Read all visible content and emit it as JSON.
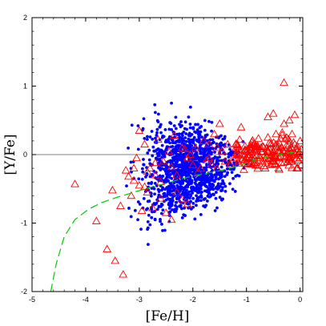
{
  "chart_data": {
    "type": "scatter",
    "title": "",
    "xlabel": "[Fe/H]",
    "ylabel": "[Y/Fe]",
    "xlim": [
      -5,
      0.05
    ],
    "ylim": [
      -2,
      2
    ],
    "x_ticks": [
      -5,
      -4,
      -3,
      -2,
      -1,
      0
    ],
    "x_tick_labels": [
      "-5",
      "-4",
      "-3",
      "-2",
      "-1",
      "0"
    ],
    "y_ticks": [
      -2,
      -1,
      0,
      1,
      2
    ],
    "y_tick_labels": [
      "-2",
      "-1",
      "0",
      "1",
      "2"
    ],
    "grid": false,
    "reference_line_y": 0,
    "colors": {
      "triangles": "#ff0000",
      "dots": "#0000ff",
      "model": "#00cc00",
      "axes": "#000000",
      "refline": "#555555"
    },
    "series": [
      {
        "marker": "open-triangle",
        "color": "#ff0000",
        "points": [
          [
            -4.2,
            -0.43
          ],
          [
            -3.8,
            -0.97
          ],
          [
            -3.6,
            -1.38
          ],
          [
            -3.45,
            -1.55
          ],
          [
            -3.3,
            -1.75
          ],
          [
            -3.35,
            -0.75
          ],
          [
            -3.5,
            -0.52
          ],
          [
            -3.25,
            -0.23
          ],
          [
            -3.2,
            -0.32
          ],
          [
            -3.1,
            -0.38
          ],
          [
            -3.15,
            -0.6
          ],
          [
            -3.05,
            -0.05
          ],
          [
            -3.0,
            0.35
          ],
          [
            -2.9,
            0.15
          ],
          [
            -2.95,
            -0.82
          ],
          [
            -2.9,
            -0.47
          ],
          [
            -2.8,
            -0.2
          ],
          [
            -2.7,
            -0.3
          ],
          [
            -2.65,
            0.22
          ],
          [
            -2.6,
            -0.4
          ],
          [
            -2.5,
            -0.85
          ],
          [
            -2.4,
            -0.95
          ],
          [
            -2.3,
            -0.55
          ],
          [
            -2.2,
            -0.65
          ],
          [
            -2.1,
            -0.72
          ],
          [
            -2.6,
            -0.64
          ],
          [
            -2.75,
            -0.78
          ],
          [
            -2.45,
            0.05
          ],
          [
            -2.35,
            0.28
          ],
          [
            -2.2,
            0.1
          ],
          [
            -2.1,
            -0.05
          ],
          [
            -2.0,
            -0.15
          ],
          [
            -1.9,
            -0.25
          ],
          [
            -1.8,
            0.2
          ],
          [
            -1.7,
            0.15
          ],
          [
            -1.6,
            0.3
          ],
          [
            -1.55,
            -0.2
          ],
          [
            -1.5,
            0.45
          ],
          [
            -1.45,
            0.05
          ],
          [
            -1.4,
            -0.1
          ],
          [
            -1.3,
            -0.15
          ],
          [
            -1.2,
            0.1
          ],
          [
            -1.1,
            0.4
          ],
          [
            -1.05,
            -0.22
          ],
          [
            -1.0,
            0.05
          ],
          [
            -0.95,
            0.0
          ],
          [
            -0.9,
            0.18
          ],
          [
            -0.85,
            -0.12
          ],
          [
            -0.8,
            0.08
          ],
          [
            -0.75,
            -0.05
          ],
          [
            -0.7,
            0.12
          ],
          [
            -0.65,
            0.0
          ],
          [
            -0.6,
            0.25
          ],
          [
            -0.55,
            -0.15
          ],
          [
            -0.5,
            0.05
          ],
          [
            -0.45,
            0.3
          ],
          [
            -0.4,
            -0.05
          ],
          [
            -0.35,
            0.1
          ],
          [
            -0.3,
            1.05
          ],
          [
            -0.25,
            0.02
          ],
          [
            -0.2,
            0.2
          ],
          [
            -0.15,
            -0.1
          ],
          [
            -0.1,
            0.15
          ],
          [
            -0.05,
            0.05
          ],
          [
            0.0,
            -0.05
          ],
          [
            0.02,
            0.08
          ],
          [
            -0.3,
            0.45
          ],
          [
            -0.5,
            0.6
          ],
          [
            -0.6,
            0.55
          ],
          [
            -0.2,
            0.5
          ],
          [
            -0.1,
            0.58
          ],
          [
            -0.65,
            -0.2
          ],
          [
            -0.4,
            -0.2
          ],
          [
            -0.85,
            0.15
          ],
          [
            -0.75,
            0.08
          ],
          [
            -0.55,
            0.15
          ],
          [
            -0.35,
            -0.12
          ],
          [
            -0.45,
            0.15
          ],
          [
            -0.25,
            0.25
          ],
          [
            -0.15,
            0.3
          ],
          [
            -0.05,
            -0.2
          ],
          [
            0.0,
            0.2
          ],
          [
            -1.55,
            0.1
          ],
          [
            -1.7,
            -0.05
          ],
          [
            -1.35,
            0.15
          ],
          [
            -1.25,
            -0.05
          ],
          [
            -1.15,
            -0.1
          ],
          [
            -2.3,
            -0.3
          ],
          [
            -2.55,
            -0.1
          ],
          [
            -2.85,
            -0.25
          ],
          [
            -3.1,
            -0.2
          ],
          [
            -1.85,
            -0.2
          ],
          [
            -2.05,
            0.0
          ],
          [
            -1.65,
            -0.15
          ],
          [
            -0.9,
            -0.05
          ],
          [
            -0.8,
            -0.15
          ],
          [
            -0.7,
            -0.1
          ],
          [
            -0.6,
            0.05
          ],
          [
            -0.5,
            -0.1
          ],
          [
            -0.4,
            0.12
          ],
          [
            -0.3,
            0.05
          ],
          [
            -0.2,
            -0.05
          ],
          [
            -0.1,
            0.0
          ],
          [
            -0.05,
            0.12
          ],
          [
            0.02,
            -0.15
          ],
          [
            -3.0,
            -0.45
          ],
          [
            -2.85,
            -0.55
          ],
          [
            -2.7,
            -0.12
          ],
          [
            -2.4,
            -0.18
          ],
          [
            -2.15,
            0.08
          ],
          [
            -1.95,
            0.1
          ],
          [
            -1.75,
            -0.08
          ]
        ]
      },
      {
        "marker": "filled-dot",
        "color": "#0000ff",
        "cluster": {
          "x_range": [
            -3.3,
            -0.8
          ],
          "y_range": [
            -1.4,
            0.9
          ],
          "center_x": -2.1,
          "center_y": -0.15
        }
      },
      {
        "marker": "dashed-line",
        "color": "#00cc00",
        "points": [
          [
            -4.65,
            -2.0
          ],
          [
            -4.55,
            -1.6
          ],
          [
            -4.4,
            -1.2
          ],
          [
            -4.2,
            -0.95
          ],
          [
            -3.95,
            -0.8
          ],
          [
            -3.7,
            -0.7
          ],
          [
            -3.4,
            -0.62
          ],
          [
            -3.1,
            -0.55
          ],
          [
            -2.8,
            -0.48
          ],
          [
            -2.5,
            -0.42
          ],
          [
            -2.2,
            -0.35
          ],
          [
            -1.9,
            -0.3
          ],
          [
            -1.6,
            -0.25
          ],
          [
            -1.3,
            -0.2
          ],
          [
            -1.0,
            -0.12
          ],
          [
            -0.7,
            -0.05
          ],
          [
            -0.4,
            0.0
          ],
          [
            0.0,
            0.05
          ]
        ]
      }
    ]
  }
}
